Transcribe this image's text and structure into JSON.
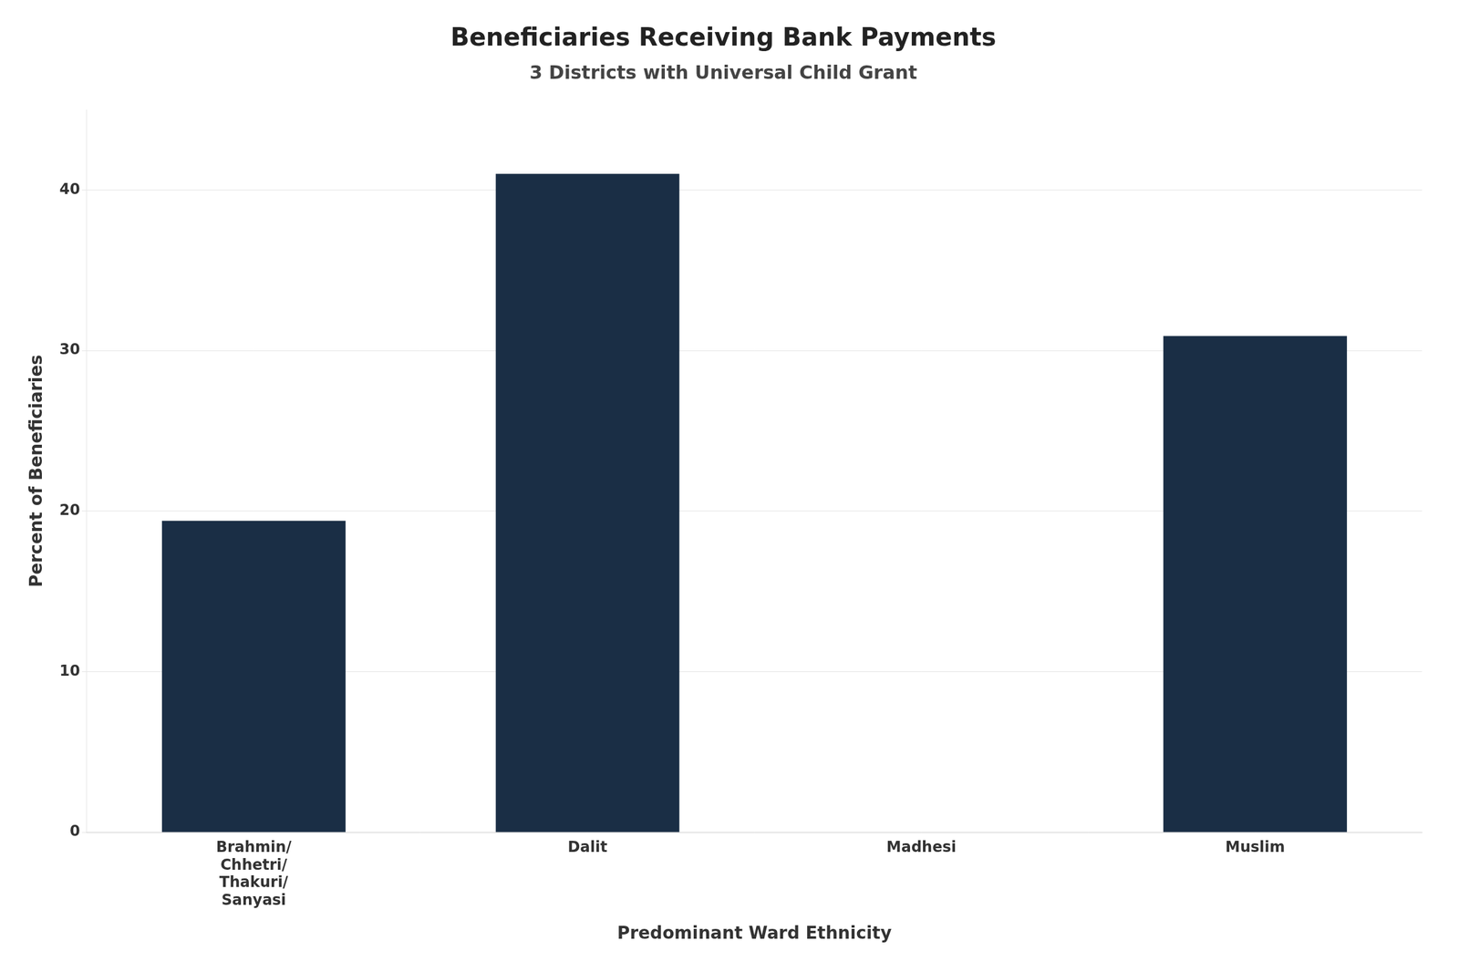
{
  "chart_data": {
    "type": "bar",
    "title": "Beneficiaries Receiving Bank Payments",
    "subtitle": "3 Districts with Universal Child Grant",
    "xlabel": "Predominant Ward Ethnicity",
    "ylabel": "Percent of Beneficiaries",
    "categories": [
      "Brahmin/\nChhetri/\nThakuri/\nSanyasi",
      "Dalit",
      "Madhesi",
      "Muslim"
    ],
    "values": [
      19.4,
      41.0,
      0.0,
      30.9
    ],
    "color": "#1a2e45",
    "ylim": [
      0,
      45
    ],
    "yticks": [
      0,
      10,
      20,
      30,
      40
    ],
    "grid": true
  }
}
